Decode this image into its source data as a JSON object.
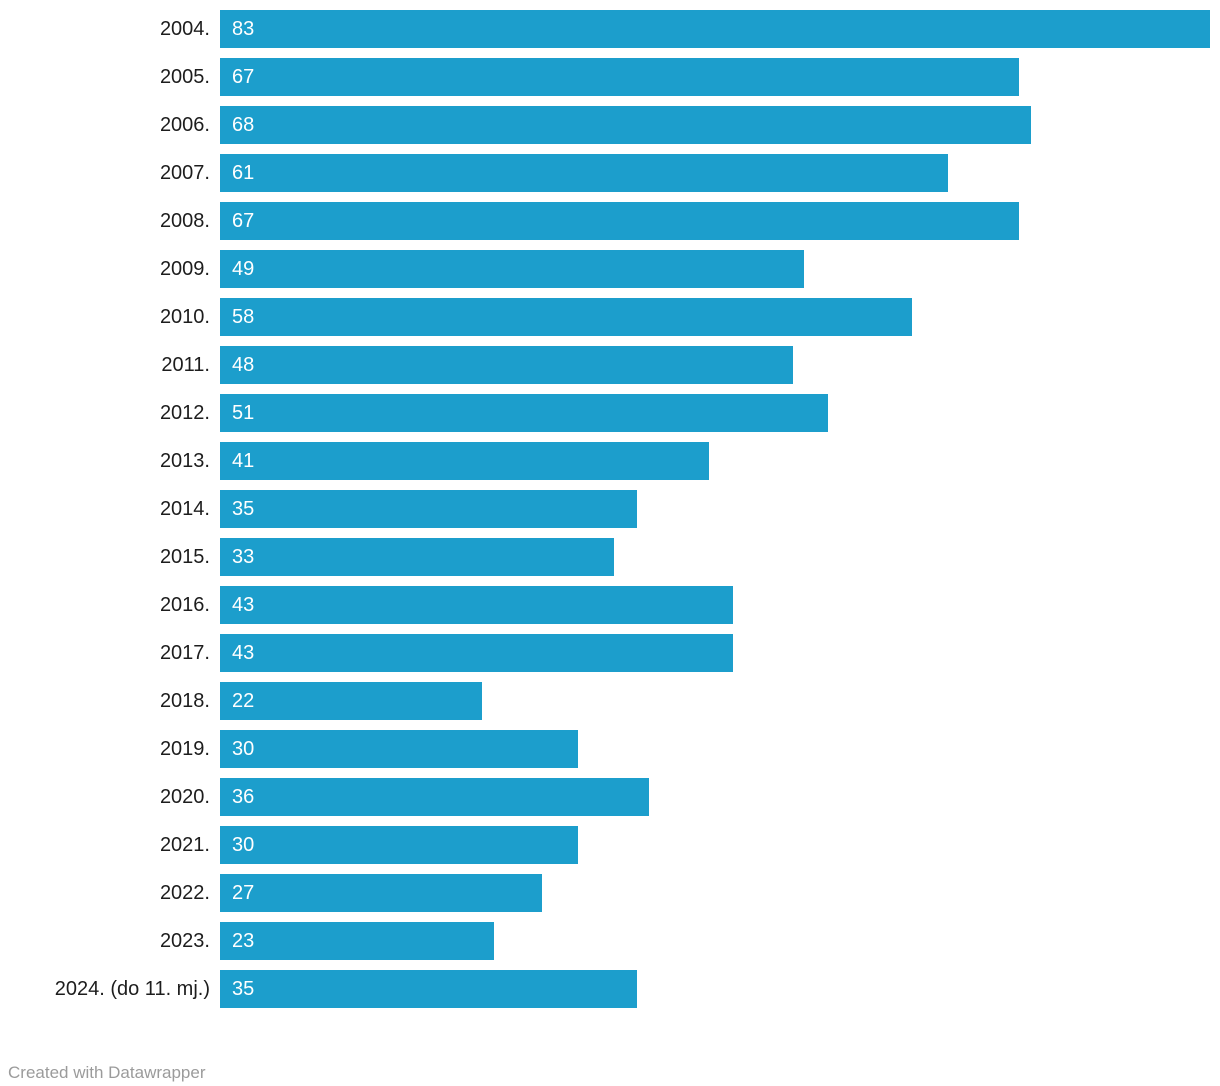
{
  "chart_data": {
    "type": "bar",
    "orientation": "horizontal",
    "title": "",
    "xlabel": "",
    "ylabel": "",
    "xlim": [
      0,
      83
    ],
    "grid": false,
    "legend": false,
    "bar_color": "#1c9ecc",
    "value_label_color": "#ffffff",
    "category_label_color": "#1d1d1d",
    "categories": [
      "2004.",
      "2005.",
      "2006.",
      "2007.",
      "2008.",
      "2009.",
      "2010.",
      "2011.",
      "2012.",
      "2013.",
      "2014.",
      "2015.",
      "2016.",
      "2017.",
      "2018.",
      "2019.",
      "2020.",
      "2021.",
      "2022.",
      "2023.",
      "2024. (do 11. mj.)"
    ],
    "values": [
      83,
      67,
      68,
      61,
      67,
      49,
      58,
      48,
      51,
      41,
      35,
      33,
      43,
      43,
      22,
      30,
      36,
      30,
      27,
      23,
      35
    ]
  },
  "footer": {
    "attribution": "Created with Datawrapper",
    "color": "#9b9b9b"
  }
}
